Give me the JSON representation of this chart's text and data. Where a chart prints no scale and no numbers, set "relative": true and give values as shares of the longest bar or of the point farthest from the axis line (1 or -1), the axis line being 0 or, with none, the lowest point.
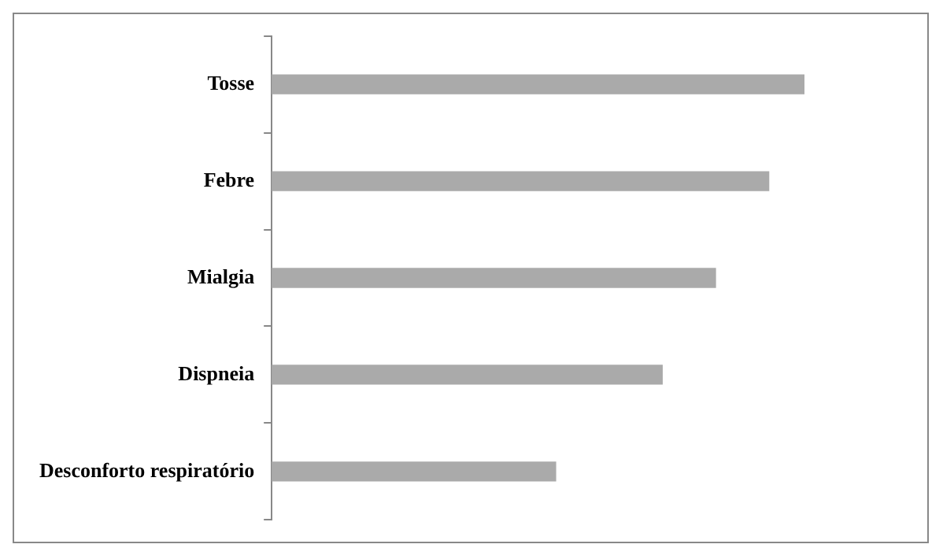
{
  "chart_data": {
    "type": "bar",
    "orientation": "horizontal",
    "relative": true,
    "categories": [
      "Tosse",
      "Febre",
      "Mialgia",
      "Dispneia",
      "Desconforto respiratório"
    ],
    "values": [
      1,
      0.933,
      0.833,
      0.733,
      0.533
    ],
    "color": "#aaaaaa",
    "grid": false,
    "legend": false
  }
}
